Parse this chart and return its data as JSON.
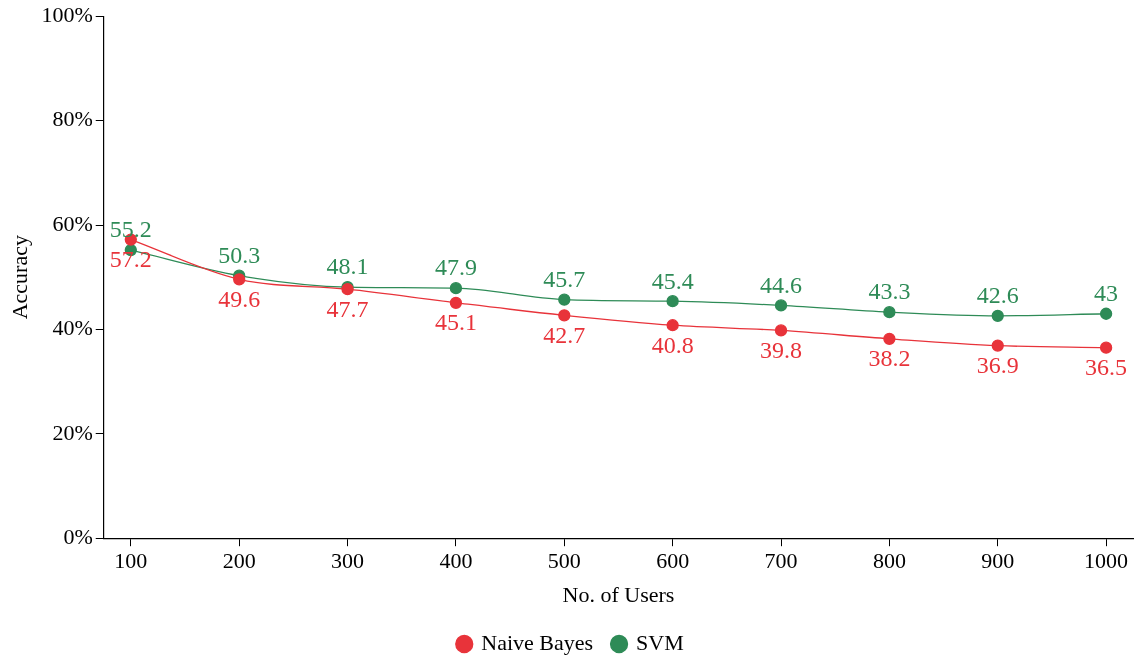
{
  "chart_data": {
    "type": "line",
    "xlabel": "No. of Users",
    "ylabel": "Accuracy",
    "x": [
      100,
      200,
      300,
      400,
      500,
      600,
      700,
      800,
      900,
      1000
    ],
    "series": [
      {
        "name": "Naive Bayes",
        "color": "#e8333a",
        "values": [
          57.2,
          49.6,
          47.7,
          45.1,
          42.7,
          40.8,
          39.8,
          38.2,
          36.9,
          36.5
        ]
      },
      {
        "name": "SVM",
        "color": "#2e8b57",
        "values": [
          55.2,
          50.3,
          48.1,
          47.9,
          45.7,
          45.4,
          44.6,
          43.3,
          42.6,
          43
        ]
      }
    ],
    "xlim": [
      75,
      1025
    ],
    "xticks": [
      100,
      200,
      300,
      400,
      500,
      600,
      700,
      800,
      900,
      1000
    ],
    "ylim": [
      0,
      100
    ],
    "yticks": [
      {
        "value": 0,
        "label": "0%"
      },
      {
        "value": 20,
        "label": "20%"
      },
      {
        "value": 40,
        "label": "40%"
      },
      {
        "value": 60,
        "label": "60%"
      },
      {
        "value": 80,
        "label": "80%"
      },
      {
        "value": 100,
        "label": "100%"
      }
    ],
    "data_labels": true,
    "legend": "bottom",
    "marker": "circle",
    "line_style": "solid",
    "grid": false
  }
}
